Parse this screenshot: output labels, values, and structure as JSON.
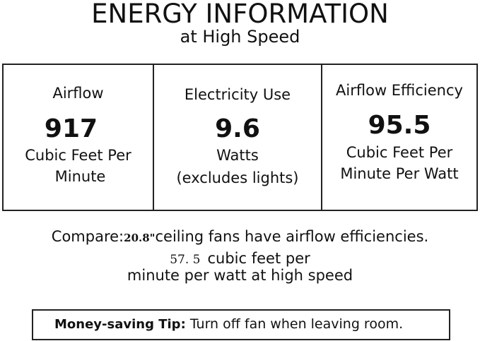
{
  "header": {
    "title": "ENERGY INFORMATION",
    "subtitle": "at High Speed"
  },
  "metrics": [
    {
      "label": "Airflow",
      "value": "917",
      "unit_line1": "Cubic Feet Per",
      "unit_line2": "Minute"
    },
    {
      "label": "Electricity Use",
      "value": "9.6",
      "unit_line1": "Watts",
      "unit_line2": "(excludes lights)"
    },
    {
      "label": "Airflow Efficiency",
      "value": "95.5",
      "unit_line1": "Cubic Feet Per",
      "unit_line2": "Minute Per Watt"
    }
  ],
  "compare": {
    "prefix": "Compare:",
    "size": "20.8\"",
    "line1_rest": "ceiling fans have airflow efficiencies.",
    "value": "57. 5",
    "line2_rest": "cubic feet per",
    "line3": "minute per watt at high speed"
  },
  "tip": {
    "label": "Money-saving Tip:",
    "text": "Turn off fan when leaving room."
  }
}
